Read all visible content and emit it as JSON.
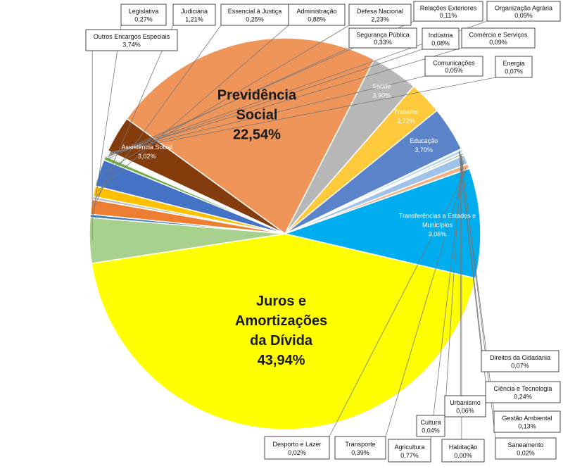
{
  "chart_data": {
    "type": "pie",
    "legend": "none",
    "slices": [
      {
        "label": "Previdência Social",
        "value": 22.54,
        "display": "22,54%",
        "color": "#f0955a",
        "inside": true,
        "big": true
      },
      {
        "label": "Saúde",
        "value": 3.9,
        "display": "3,90%",
        "color": "#b7b7b7",
        "inside": true
      },
      {
        "label": "Trabalho",
        "value": 2.72,
        "display": "2,72%",
        "color": "#ffc93c",
        "inside": true
      },
      {
        "label": "Educação",
        "value": 3.7,
        "display": "3,70%",
        "color": "#5b83c9",
        "inside": true
      },
      {
        "label": "Direitos da Cidadania",
        "value": 0.07,
        "display": "0,07%",
        "color": "#3c6fb0"
      },
      {
        "label": "Ciência e Tecnologia",
        "value": 0.24,
        "display": "0,24%",
        "color": "#a3d3f0"
      },
      {
        "label": "Urbanismo",
        "value": 0.06,
        "display": "0,06%",
        "color": "#7aa6d8"
      },
      {
        "label": "Gestão Ambiental",
        "value": 0.13,
        "display": "0,13%",
        "color": "#4d8b3b"
      },
      {
        "label": "Cultura",
        "value": 0.04,
        "display": "0,04%",
        "color": "#888888"
      },
      {
        "label": "Saneamento",
        "value": 0.02,
        "display": "0,02%",
        "color": "#c7a34a"
      },
      {
        "label": "Habitação",
        "value": 0.0,
        "display": "0,00%",
        "color": "#3e6a33"
      },
      {
        "label": "Agricultura",
        "value": 0.77,
        "display": "0,77%",
        "color": "#9fc3e8"
      },
      {
        "label": "Transporte",
        "value": 0.39,
        "display": "0,39%",
        "color": "#f4b183"
      },
      {
        "label": "Desporto e Lazer",
        "value": 0.02,
        "display": "0,02%",
        "color": "#444444"
      },
      {
        "label": "Transferências a Estados e Municípios",
        "value": 9.06,
        "display": "9,06%",
        "color": "#00adef",
        "inside": true
      },
      {
        "label": "Juros e Amortizações da Dívida",
        "value": 43.94,
        "display": "43,94%",
        "color": "#ffff00",
        "inside": true,
        "big": true
      },
      {
        "label": "Outros Encargos Especiais",
        "value": 3.74,
        "display": "3,74%",
        "color": "#a9d18e"
      },
      {
        "label": "Legislativa",
        "value": 0.27,
        "display": "0,27%",
        "color": "#4a7dbf"
      },
      {
        "label": "Judiciária",
        "value": 1.21,
        "display": "1,21%",
        "color": "#ed7d31"
      },
      {
        "label": "Essencial à Justiça",
        "value": 0.25,
        "display": "0,25%",
        "color": "#bfbfbf"
      },
      {
        "label": "Administração",
        "value": 0.88,
        "display": "0,88%",
        "color": "#ffc000"
      },
      {
        "label": "Defesa Nacional",
        "value": 2.23,
        "display": "2,23%",
        "color": "#4472c4"
      },
      {
        "label": "Segurança Pública",
        "value": 0.33,
        "display": "0,33%",
        "color": "#70ad47"
      },
      {
        "label": "Relações Exteriores",
        "value": 0.11,
        "display": "0,11%",
        "color": "#255e91"
      },
      {
        "label": "Indústria",
        "value": 0.08,
        "display": "0,08%",
        "color": "#9e480e"
      },
      {
        "label": "Organização Agrária",
        "value": 0.09,
        "display": "0,09%",
        "color": "#636363"
      },
      {
        "label": "Comércio e Serviços",
        "value": 0.09,
        "display": "0,09%",
        "color": "#997300"
      },
      {
        "label": "Comunicações",
        "value": 0.05,
        "display": "0,05%",
        "color": "#264478"
      },
      {
        "label": "Energia",
        "value": 0.07,
        "display": "0,07%",
        "color": "#43682b"
      },
      {
        "label": "Assistência Social",
        "value": 3.02,
        "display": "3,02%",
        "color": "#843c0c",
        "inside": true
      }
    ]
  }
}
